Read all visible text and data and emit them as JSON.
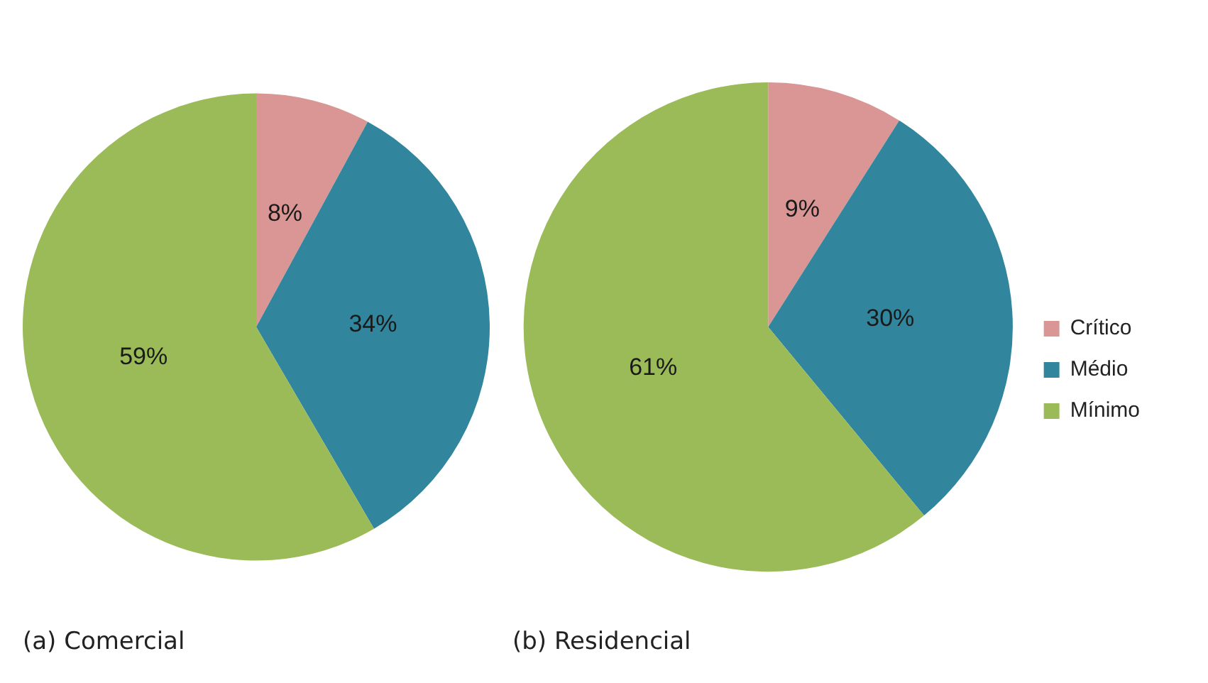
{
  "chart_data": [
    {
      "type": "pie",
      "title": "(a) Comercial",
      "categories": [
        null,
        null,
        null
      ],
      "values": [
        8,
        34,
        59
      ],
      "value_labels": [
        "8%",
        "34%",
        "59%"
      ],
      "colors": [
        "#d99694",
        "#31859c",
        "#9bbb59"
      ],
      "legend": false
    },
    {
      "type": "pie",
      "title": "(b) Residencial",
      "categories": [
        "Crítico",
        "Médio",
        "Mínimo"
      ],
      "values": [
        9,
        30,
        61
      ],
      "value_labels": [
        "9%",
        "30%",
        "61%"
      ],
      "colors": [
        "#d99694",
        "#31859c",
        "#9bbb59"
      ],
      "legend": "right"
    }
  ]
}
